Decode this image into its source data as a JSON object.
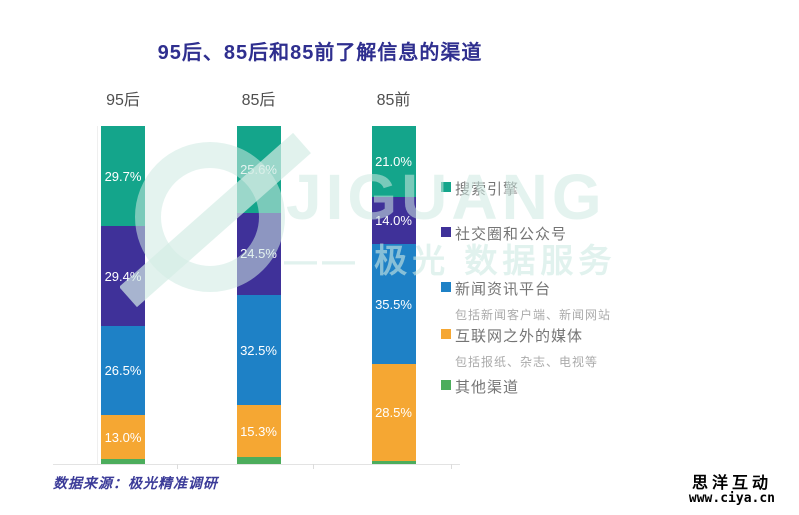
{
  "title": "95后、85后和85前了解信息的渠道",
  "source_note": "数据来源：极光精准调研",
  "watermark": {
    "logo": "jiguang-logo",
    "brand_text": "JIGUANG",
    "tagline": "—— 极光 数据服务"
  },
  "footer_brand": {
    "name": "思洋互动",
    "url": "www.ciya.cn"
  },
  "chart_data": {
    "type": "bar",
    "stacked": true,
    "orientation": "vertical",
    "title": "95后、85后和85前了解信息的渠道",
    "categories": [
      "95后",
      "85后",
      "85前"
    ],
    "series": [
      {
        "name": "搜索引擎",
        "values": [
          29.7,
          25.6,
          21.0
        ],
        "color": "#14A58B",
        "labels_shown": true
      },
      {
        "name": "社交圈和公众号",
        "values": [
          29.4,
          24.5,
          14.0
        ],
        "color": "#3F3199",
        "labels_shown": true
      },
      {
        "name": "新闻资讯平台",
        "sub": "包括新闻客户端、新闻网站",
        "values": [
          26.5,
          32.5,
          35.5
        ],
        "color": "#1E81C6",
        "labels_shown": true
      },
      {
        "name": "互联网之外的媒体",
        "sub": "包括报纸、杂志、电视等",
        "values": [
          13.0,
          15.3,
          28.5
        ],
        "color": "#F5A733",
        "labels_shown": true
      },
      {
        "name": "其他渠道",
        "values": [
          1.4,
          2.1,
          1.0
        ],
        "color": "#4CAD5C",
        "labels_shown": false
      }
    ],
    "value_format": "percent_one_decimal",
    "ylim": [
      0,
      100
    ],
    "grid": false,
    "legend_position": "right"
  }
}
